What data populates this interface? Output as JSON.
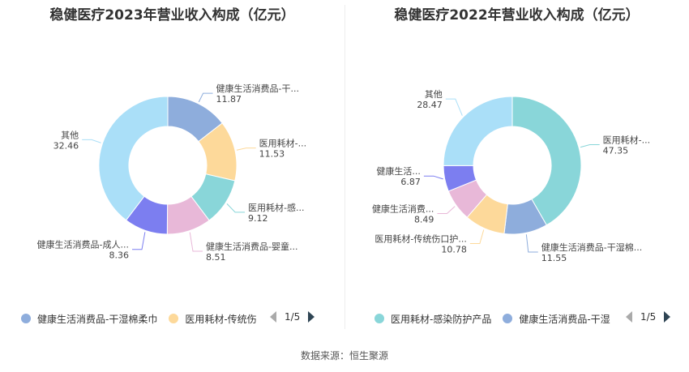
{
  "chart_data": [
    {
      "type": "pie",
      "title": "稳健医疗2023年营业收入构成（亿元）",
      "categories": [
        "健康生活消费品-干湿棉柔巾",
        "医用耗材-传统伤口护理与包扎",
        "医用耗材-感染防护产品",
        "健康生活消费品-婴童服饰",
        "健康生活消费品-成人服饰",
        "其他"
      ],
      "labels": [
        "健康生活消费品-干...",
        "医用耗材-...",
        "医用耗材-感...",
        "健康生活消费品-婴童...",
        "健康生活消费品-成人...",
        "其他"
      ],
      "values": [
        11.87,
        11.53,
        9.12,
        8.51,
        8.36,
        32.46
      ],
      "value_labels": [
        "11.87",
        "11.53",
        "9.12",
        "8.51",
        "8.36",
        "32.46"
      ],
      "colors": [
        "#8eaddc",
        "#fdd99a",
        "#89d6d9",
        "#e8b8d8",
        "#7c7ef0",
        "#aadff8"
      ],
      "legend": {
        "position": "bottom",
        "visible_items": [
          {
            "label": "健康生活消费品-干湿棉柔巾",
            "color": "#8eaddc"
          },
          {
            "label": "医用耗材-传统伤",
            "color": "#fdd99a"
          }
        ],
        "page": "1/5"
      }
    },
    {
      "type": "pie",
      "title": "稳健医疗2022年营业收入构成（亿元）",
      "categories": [
        "医用耗材-感染防护产品",
        "健康生活消费品-干湿棉柔巾",
        "医用耗材-传统伤口护理与包扎",
        "健康生活消费品-婴童服饰",
        "健康生活消费品-成人服饰",
        "其他"
      ],
      "labels": [
        "医用耗材-...",
        "健康生活消费品-干湿棉...",
        "医用耗材-传统伤口护...",
        "健康生活消费...",
        "健康生活...",
        "其他"
      ],
      "values": [
        47.35,
        11.55,
        10.78,
        8.49,
        6.87,
        28.47
      ],
      "value_labels": [
        "47.35",
        "11.55",
        "10.78",
        "8.49",
        "6.87",
        "28.47"
      ],
      "colors": [
        "#89d6d9",
        "#8eaddc",
        "#fdd99a",
        "#e8b8d8",
        "#7c7ef0",
        "#aadff8"
      ],
      "legend": {
        "position": "bottom",
        "visible_items": [
          {
            "label": "医用耗材-感染防护产品",
            "color": "#89d6d9"
          },
          {
            "label": "健康生活消费品-干湿",
            "color": "#8eaddc"
          }
        ],
        "page": "1/5"
      }
    }
  ],
  "footer": {
    "source": "数据来源：恒生聚源"
  }
}
